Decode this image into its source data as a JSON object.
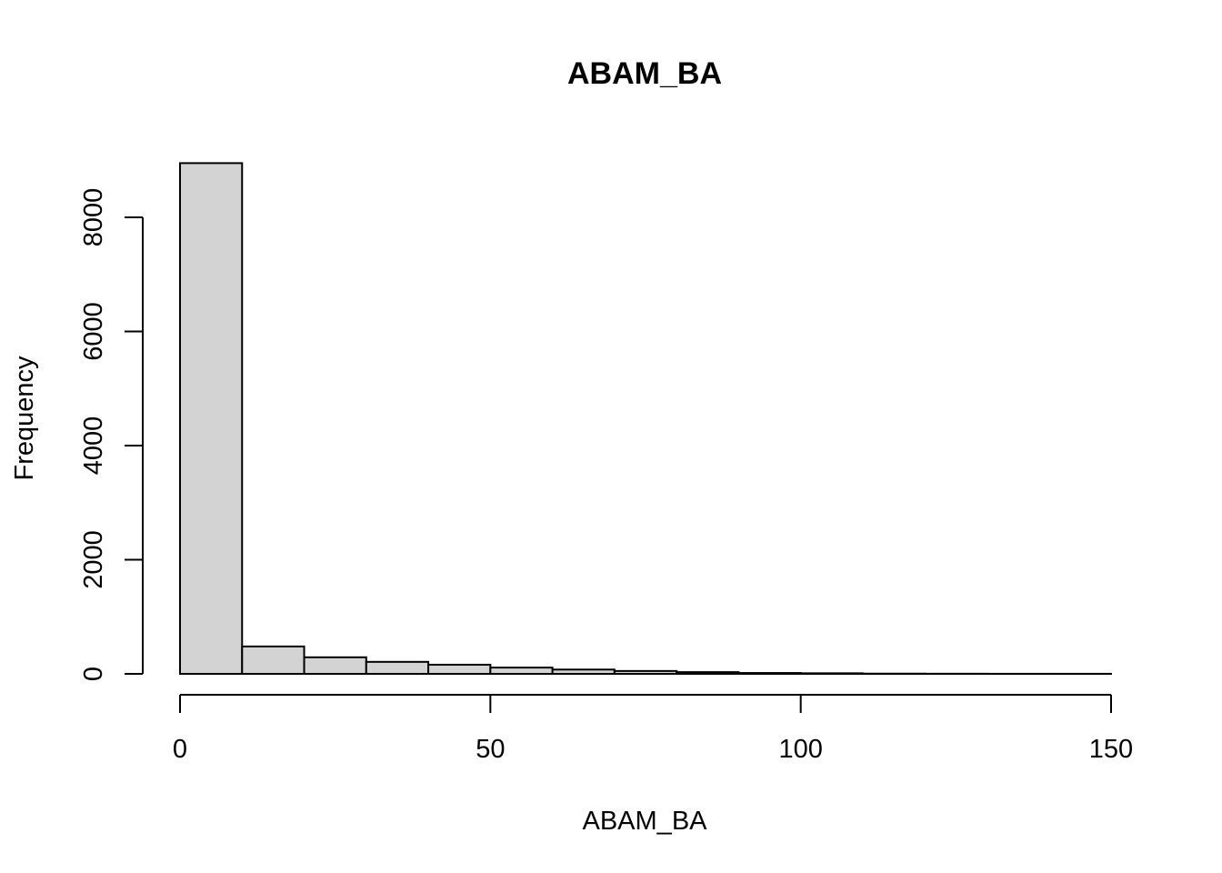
{
  "chart_data": {
    "type": "bar",
    "subtype": "histogram",
    "title": "ABAM_BA",
    "xlabel": "ABAM_BA",
    "ylabel": "Frequency",
    "bins": [
      {
        "x0": 0,
        "x1": 10,
        "count": 8950
      },
      {
        "x0": 10,
        "x1": 20,
        "count": 480
      },
      {
        "x0": 20,
        "x1": 30,
        "count": 290
      },
      {
        "x0": 30,
        "x1": 40,
        "count": 210
      },
      {
        "x0": 40,
        "x1": 50,
        "count": 160
      },
      {
        "x0": 50,
        "x1": 60,
        "count": 110
      },
      {
        "x0": 60,
        "x1": 70,
        "count": 75
      },
      {
        "x0": 70,
        "x1": 80,
        "count": 50
      },
      {
        "x0": 80,
        "x1": 90,
        "count": 30
      },
      {
        "x0": 90,
        "x1": 100,
        "count": 15
      },
      {
        "x0": 100,
        "x1": 110,
        "count": 10
      },
      {
        "x0": 110,
        "x1": 120,
        "count": 4
      },
      {
        "x0": 120,
        "x1": 130,
        "count": 2
      },
      {
        "x0": 130,
        "x1": 140,
        "count": 1
      },
      {
        "x0": 140,
        "x1": 150,
        "count": 1
      }
    ],
    "xticks": [
      0,
      50,
      100,
      150
    ],
    "xtick_labels": [
      "0",
      "50",
      "100",
      "150"
    ],
    "yticks": [
      0,
      2000,
      4000,
      6000,
      8000
    ],
    "ytick_labels": [
      "0",
      "2000",
      "4000",
      "6000",
      "8000"
    ],
    "xlim": [
      0,
      150
    ],
    "ylim": [
      0,
      8000
    ],
    "grid": false,
    "colors": {
      "bar_fill": "#d3d3d3",
      "bar_stroke": "#000000",
      "axis": "#000000",
      "background": "#ffffff"
    }
  }
}
